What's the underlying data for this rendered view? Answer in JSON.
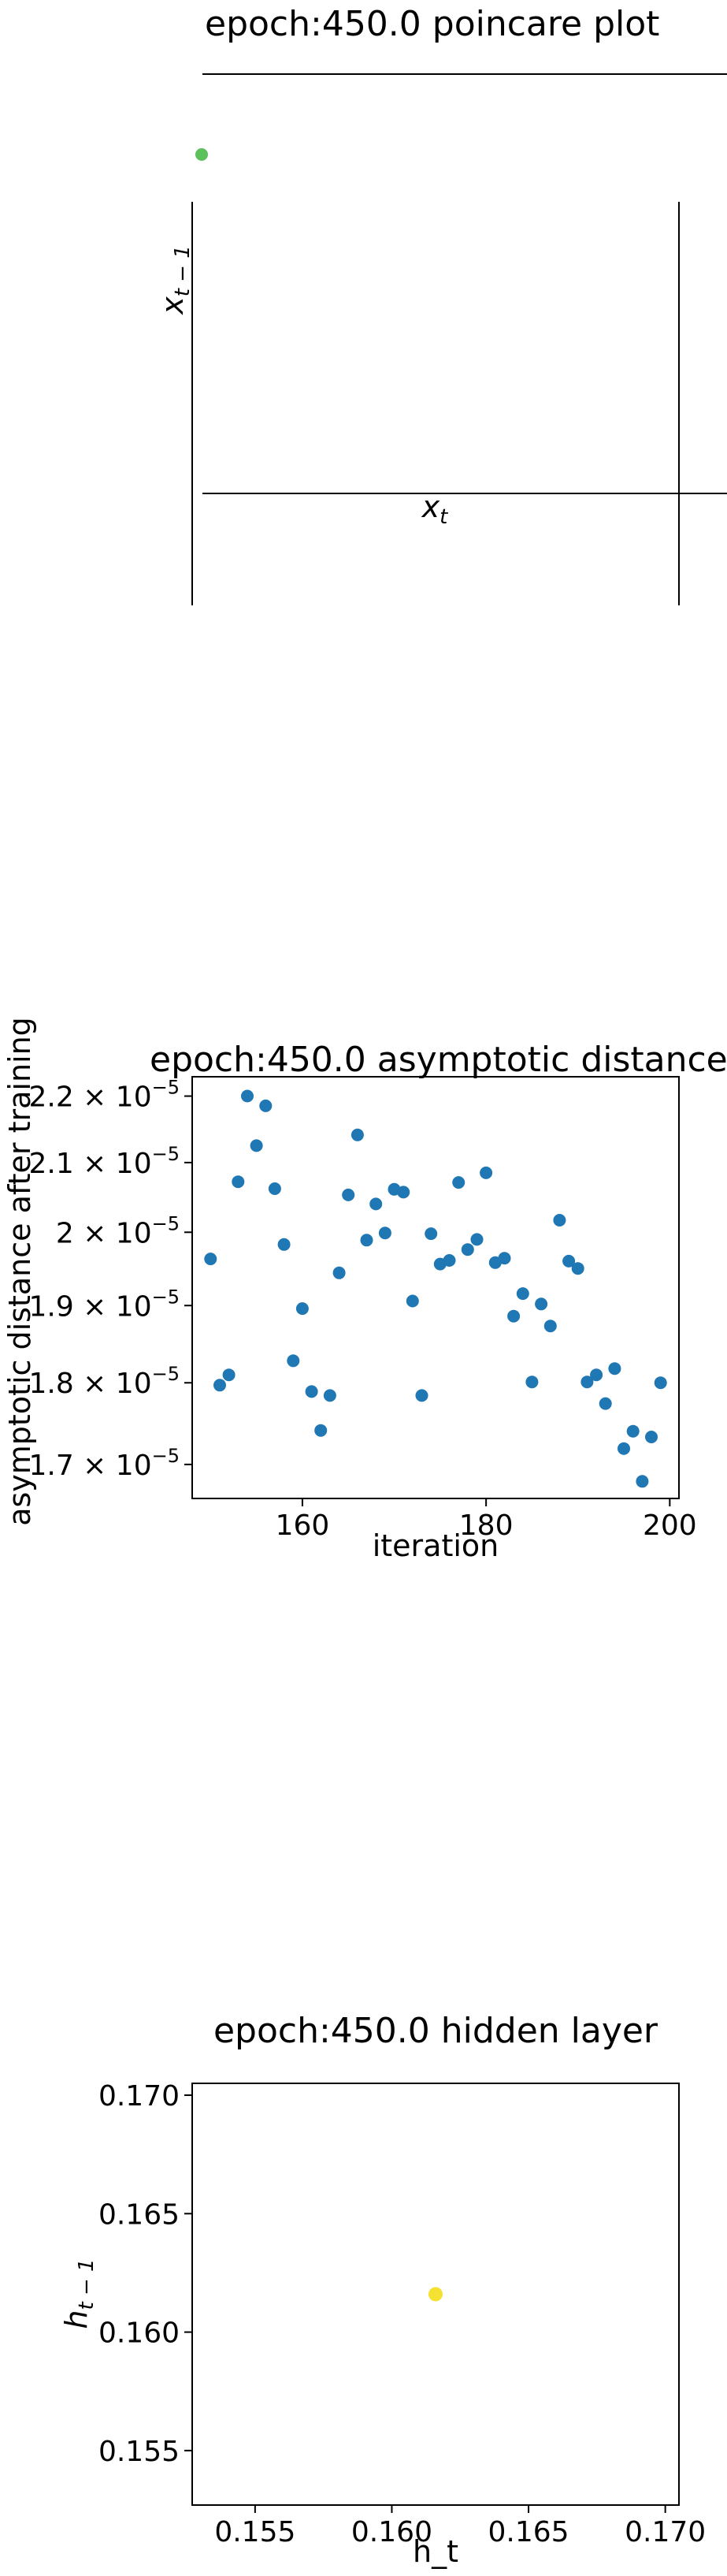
{
  "chart_data": [
    {
      "type": "scatter",
      "title": "epoch:450.0 poincare plot",
      "xlabel_base": "x",
      "xlabel_sub": "t",
      "ylabel_base": "x",
      "ylabel_sub": "t − 1",
      "points": [
        {
          "x": 0,
          "y": 0
        }
      ],
      "color": "#5cc05c"
    },
    {
      "type": "scatter",
      "title": "epoch:450.0 asymptotic distance",
      "xlabel": "iteration",
      "ylabel": "asymptotic distance after training",
      "xticks": [
        "160",
        "180",
        "200"
      ],
      "yticks": [
        {
          "mant": "2.2",
          "exp": "−5"
        },
        {
          "mant": "2.1",
          "exp": "−5"
        },
        {
          "mant": "2",
          "exp": "−5"
        },
        {
          "mant": "1.9",
          "exp": "−5"
        },
        {
          "mant": "1.8",
          "exp": "−5"
        },
        {
          "mant": "1.7",
          "exp": "−5"
        }
      ],
      "y_scale": "log",
      "xlim": [
        148,
        201
      ],
      "ylim": [
        1.66e-05,
        2.23e-05
      ],
      "color": "#1f77b4",
      "x": [
        150,
        151,
        152,
        153,
        154,
        155,
        156,
        157,
        158,
        159,
        160,
        161,
        162,
        163,
        164,
        165,
        166,
        167,
        168,
        169,
        170,
        171,
        172,
        173,
        174,
        175,
        176,
        177,
        178,
        179,
        180,
        181,
        182,
        183,
        184,
        185,
        186,
        187,
        188,
        189,
        190,
        191,
        192,
        193,
        194,
        195,
        196,
        197,
        198,
        199
      ],
      "y": [
        1.963e-05,
        1.797e-05,
        1.81e-05,
        2.072e-05,
        2.2e-05,
        2.125e-05,
        2.185e-05,
        2.062e-05,
        1.983e-05,
        1.828e-05,
        1.896e-05,
        1.789e-05,
        1.741e-05,
        1.784e-05,
        1.944e-05,
        2.053e-05,
        2.141e-05,
        1.989e-05,
        2.04e-05,
        1.999e-05,
        2.061e-05,
        2.057e-05,
        1.906e-05,
        1.784e-05,
        1.998e-05,
        1.956e-05,
        1.961e-05,
        2.071e-05,
        1.976e-05,
        1.99e-05,
        2.085e-05,
        1.958e-05,
        1.964e-05,
        1.886e-05,
        1.916e-05,
        1.801e-05,
        1.902e-05,
        1.873e-05,
        2.017e-05,
        1.96e-05,
        1.95e-05,
        1.801e-05,
        1.81e-05,
        1.774e-05,
        1.818e-05,
        1.719e-05,
        1.74e-05,
        1.68e-05,
        1.733e-05,
        1.8e-05
      ]
    },
    {
      "type": "scatter",
      "title": "epoch:450.0 hidden layer",
      "xlabel": "h_t",
      "ylabel_base": "h",
      "ylabel_sub": "t − 1",
      "xticks": [
        "0.155",
        "0.160",
        "0.165",
        "0.170"
      ],
      "xtick_values": [
        0.155,
        0.16,
        0.165,
        0.17
      ],
      "yticks": [
        "0.170",
        "0.165",
        "0.160",
        "0.155"
      ],
      "ytick_values": [
        0.17,
        0.165,
        0.16,
        0.155
      ],
      "xlim": [
        0.1527,
        0.1705
      ],
      "ylim": [
        0.1527,
        0.1705
      ],
      "points": [
        {
          "x": 0.1616,
          "y": 0.1616
        }
      ],
      "color": "#f5e131"
    }
  ]
}
